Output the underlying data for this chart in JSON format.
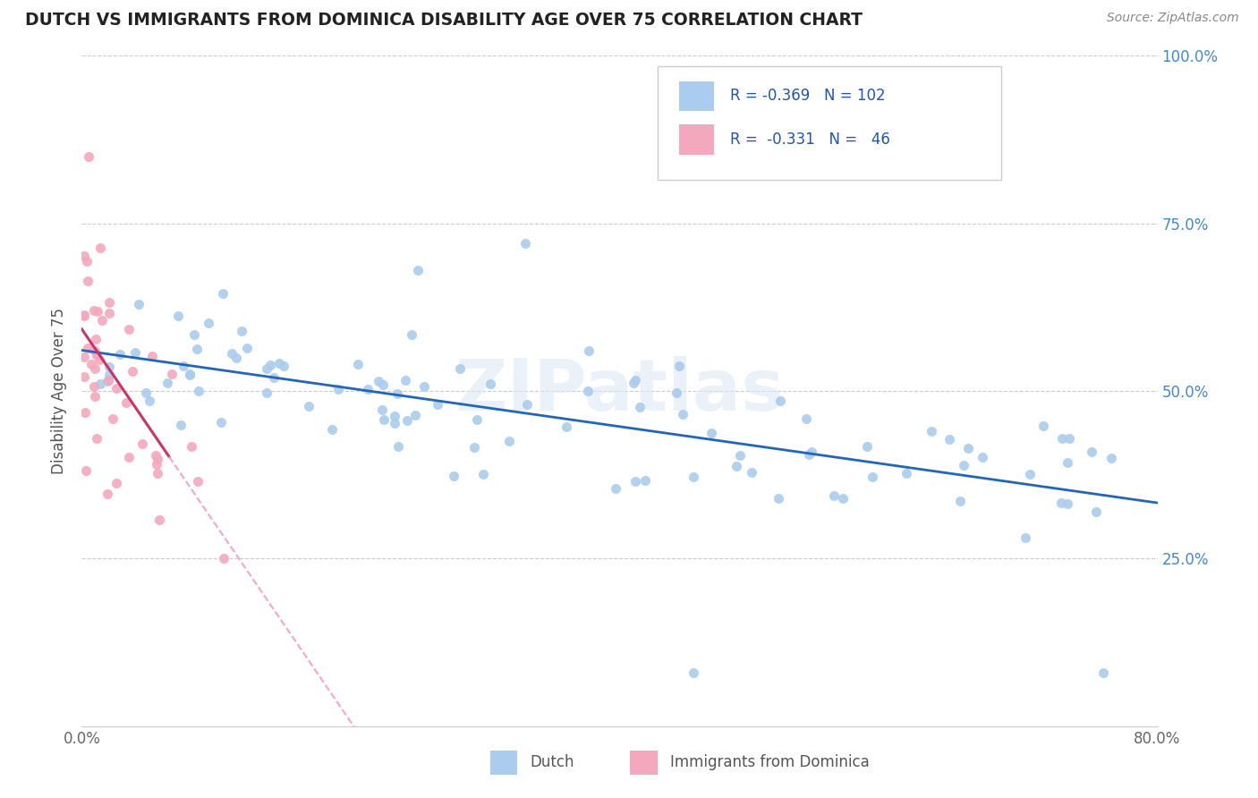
{
  "title": "DUTCH VS IMMIGRANTS FROM DOMINICA DISABILITY AGE OVER 75 CORRELATION CHART",
  "source": "Source: ZipAtlas.com",
  "ylabel": "Disability Age Over 75",
  "dutch_R": -0.369,
  "dutch_N": 102,
  "dominica_R": -0.331,
  "dominica_N": 46,
  "dutch_color": "#aaccee",
  "dominica_color": "#f4a8be",
  "dutch_line_color": "#2266bb",
  "dominica_line_color_solid": "#cc3366",
  "dominica_line_color_dash": "#f4a8be",
  "xlim": [
    0.0,
    0.8
  ],
  "ylim": [
    0.0,
    1.0
  ],
  "ytick_vals": [
    0.25,
    0.5,
    0.75,
    1.0
  ],
  "ytick_labels": [
    "25.0%",
    "50.0%",
    "75.0%",
    "100.0%"
  ],
  "xtick_vals": [
    0.0,
    0.8
  ],
  "xtick_labels": [
    "0.0%",
    "80.0%"
  ],
  "watermark": "ZIPatlas",
  "background_color": "#ffffff",
  "grid_color": "#cccccc",
  "title_color": "#222222",
  "source_color": "#888888",
  "axis_label_color": "#555555",
  "tick_color_right": "#4488cc",
  "legend_edge_color": "#cccccc",
  "legend_face_color": "#ffffff",
  "bottom_legend_label1": "Dutch",
  "bottom_legend_label2": "Immigrants from Dominica"
}
